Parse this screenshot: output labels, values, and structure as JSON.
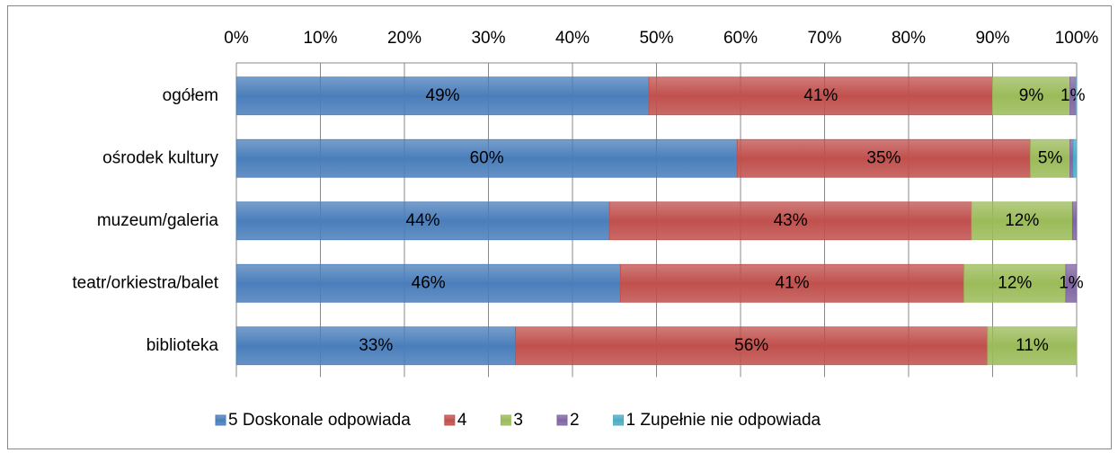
{
  "chart_data": {
    "type": "bar",
    "orientation": "horizontal",
    "stacked": true,
    "categories": [
      "ogółem",
      "ośrodek kultury",
      "muzeum/galeria",
      "teatr/orkiestra/balet",
      "biblioteka"
    ],
    "series": [
      {
        "name": "5 Doskonale odpowiada",
        "color": "#4a7ebb",
        "values": [
          49.1,
          59.6,
          44.4,
          45.7,
          33.2
        ],
        "value_labels": [
          "49%",
          "60%",
          "44%",
          "46%",
          "33%"
        ]
      },
      {
        "name": "4",
        "color": "#c0504d",
        "values": [
          40.9,
          34.9,
          43.1,
          40.9,
          56.2
        ],
        "value_labels": [
          "41%",
          "35%",
          "43%",
          "41%",
          "56%"
        ]
      },
      {
        "name": "3",
        "color": "#9bbb59",
        "values": [
          9.2,
          4.7,
          12.0,
          12.1,
          10.6
        ],
        "value_labels": [
          "9%",
          "5%",
          "12%",
          "12%",
          "11%"
        ]
      },
      {
        "name": "2",
        "color": "#8064a2",
        "values": [
          0.7,
          0.4,
          0.5,
          1.3,
          0
        ],
        "value_labels": [
          "1%",
          null,
          null,
          "1%",
          null
        ]
      },
      {
        "name": "1 Zupełnie nie odpowiada",
        "color": "#4bacc6",
        "values": [
          0.1,
          0.4,
          0,
          0,
          0
        ],
        "value_labels": [
          null,
          null,
          null,
          null,
          null
        ]
      }
    ],
    "xlim": [
      0,
      100
    ],
    "xticks": [
      {
        "value": 0,
        "label": "0%"
      },
      {
        "value": 10,
        "label": "10%"
      },
      {
        "value": 20,
        "label": "20%"
      },
      {
        "value": 30,
        "label": "30%"
      },
      {
        "value": 40,
        "label": "40%"
      },
      {
        "value": 50,
        "label": "50%"
      },
      {
        "value": 60,
        "label": "60%"
      },
      {
        "value": 70,
        "label": "70%"
      },
      {
        "value": 80,
        "label": "80%"
      },
      {
        "value": 90,
        "label": "90%"
      },
      {
        "value": 100,
        "label": "100%"
      }
    ],
    "grid": true,
    "legend": "bottom"
  }
}
